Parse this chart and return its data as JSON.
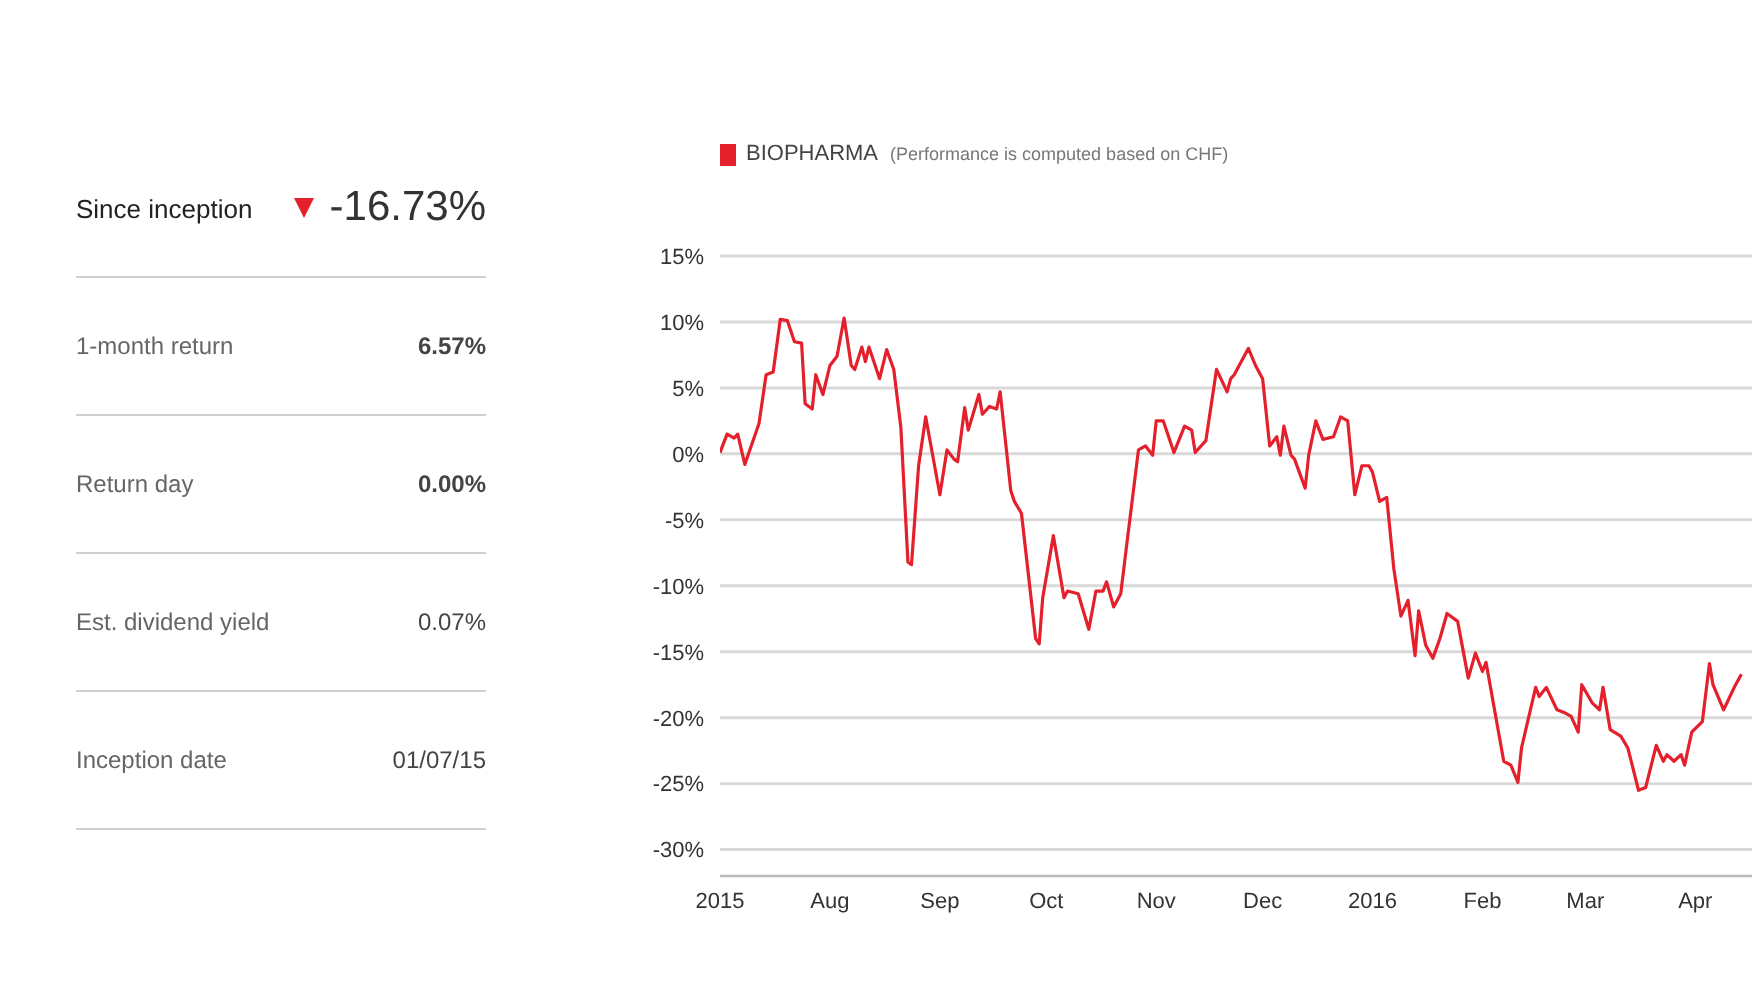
{
  "chart_data": [
    {
      "type": "other",
      "annotations": [
        "Since inception",
        "-16.73%",
        "1-month return",
        "6.57%",
        "Return day",
        "0.00%",
        "Est. dividend yield",
        "0.07%",
        "Inception date",
        "01/07/15"
      ]
    },
    {
      "type": "line",
      "subtitle": "(Performance is computed based on CHF)",
      "x": [
        "2015-07-01",
        "2015-07-03",
        "2015-07-05",
        "2015-07-06",
        "2015-07-08",
        "2015-07-12",
        "2015-07-14",
        "2015-07-16",
        "2015-07-18",
        "2015-07-20",
        "2015-07-22",
        "2015-07-24",
        "2015-07-25",
        "2015-07-27",
        "2015-07-28",
        "2015-07-30",
        "2015-08-01",
        "2015-08-03",
        "2015-08-05",
        "2015-08-07",
        "2015-08-08",
        "2015-08-10",
        "2015-08-11",
        "2015-08-12",
        "2015-08-15",
        "2015-08-17",
        "2015-08-19",
        "2015-08-21",
        "2015-08-23",
        "2015-08-24",
        "2015-08-26",
        "2015-08-28",
        "2015-09-01",
        "2015-09-03",
        "2015-09-05",
        "2015-09-06",
        "2015-09-08",
        "2015-09-09",
        "2015-09-12",
        "2015-09-13",
        "2015-09-15",
        "2015-09-17",
        "2015-09-18",
        "2015-09-21",
        "2015-09-22",
        "2015-09-24",
        "2015-09-28",
        "2015-09-29",
        "2015-09-30",
        "2015-10-03",
        "2015-10-06",
        "2015-10-07",
        "2015-10-10",
        "2015-10-13",
        "2015-10-15",
        "2015-10-17",
        "2015-10-18",
        "2015-10-20",
        "2015-10-22",
        "2015-10-24",
        "2015-10-27",
        "2015-10-29",
        "2015-10-31",
        "2015-11-01",
        "2015-11-03",
        "2015-11-06",
        "2015-11-09",
        "2015-11-11",
        "2015-11-12",
        "2015-11-15",
        "2015-11-18",
        "2015-11-21",
        "2015-11-22",
        "2015-11-23",
        "2015-11-27",
        "2015-11-29",
        "2015-12-01",
        "2015-12-03",
        "2015-12-05",
        "2015-12-06",
        "2015-12-07",
        "2015-12-09",
        "2015-12-10",
        "2015-12-13",
        "2015-12-14",
        "2015-12-16",
        "2015-12-18",
        "2015-12-21",
        "2015-12-23",
        "2015-12-25",
        "2015-12-27",
        "2015-12-29",
        "2015-12-31",
        "2016-01-01",
        "2016-01-03",
        "2016-01-05",
        "2016-01-07",
        "2016-01-09",
        "2016-01-11",
        "2016-01-13",
        "2016-01-14",
        "2016-01-16",
        "2016-01-18",
        "2016-01-20",
        "2016-01-22",
        "2016-01-25",
        "2016-01-28",
        "2016-01-30",
        "2016-02-01",
        "2016-02-02",
        "2016-02-07",
        "2016-02-09",
        "2016-02-11",
        "2016-02-12",
        "2016-02-16",
        "2016-02-17",
        "2016-02-19",
        "2016-02-22",
        "2016-02-24",
        "2016-02-26",
        "2016-02-28",
        "2016-02-29",
        "2016-03-03",
        "2016-03-05",
        "2016-03-06",
        "2016-03-08",
        "2016-03-11",
        "2016-03-13",
        "2016-03-16",
        "2016-03-18",
        "2016-03-21",
        "2016-03-23",
        "2016-03-24",
        "2016-03-26",
        "2016-03-28",
        "2016-03-29",
        "2016-03-31",
        "2016-04-03",
        "2016-04-05",
        "2016-04-06",
        "2016-04-09",
        "2016-04-12",
        "2016-04-14"
      ],
      "series": [
        {
          "name": "BIOPHARMA",
          "color": "#e3202b",
          "values": [
            0.1,
            1.5,
            1.2,
            1.5,
            -0.8,
            2.3,
            6,
            6.2,
            10.2,
            10.1,
            8.5,
            8.4,
            3.8,
            3.4,
            6,
            4.5,
            6.7,
            7.4,
            10.3,
            6.7,
            6.4,
            8.1,
            7,
            8.1,
            5.7,
            7.9,
            6.4,
            2,
            -8.2,
            -8.4,
            -0.9,
            2.8,
            -3.1,
            0.3,
            -0.4,
            -0.6,
            3.5,
            1.8,
            4.5,
            3.0,
            3.6,
            3.4,
            4.7,
            -2.8,
            -3.6,
            -4.5,
            -14,
            -14.4,
            -10.9,
            -6.2,
            -10.9,
            -10.4,
            -10.6,
            -13.3,
            -10.4,
            -10.4,
            -9.7,
            -11.6,
            -10.6,
            -6.2,
            0.3,
            0.6,
            -0.1,
            2.5,
            2.5,
            0.1,
            2.1,
            1.8,
            0.1,
            1,
            6.4,
            4.7,
            5.7,
            6,
            8,
            6.7,
            5.7,
            0.6,
            1.3,
            -0.1,
            2.1,
            -0.1,
            -0.4,
            -2.6,
            -0.1,
            2.5,
            1.1,
            1.3,
            2.8,
            2.5,
            -3.1,
            -0.9,
            -0.9,
            -1.4,
            -3.6,
            -3.3,
            -8.7,
            -12.3,
            -11.1,
            -15.3,
            -11.9,
            -14.5,
            -15.5,
            -14,
            -12.1,
            -12.7,
            -17,
            -15.1,
            -16.5,
            -15.8,
            -23.3,
            -23.6,
            -24.9,
            -22.3,
            -17.7,
            -18.4,
            -17.7,
            -19.4,
            -19.6,
            -19.9,
            -21.1,
            -17.5,
            -18.9,
            -19.4,
            -17.7,
            -20.9,
            -21.4,
            -22.3,
            -25.5,
            -25.3,
            -22.1,
            -23.3,
            -22.8,
            -23.3,
            -22.8,
            -23.6,
            -21.1,
            -20.3,
            -15.9,
            -17.5,
            -19.4,
            -17.7,
            -16.7
          ]
        }
      ],
      "xlim": [
        "2015-07-01",
        "2016-04-17"
      ],
      "xticks": [
        {
          "value": "2015-07-01",
          "label": "2015"
        },
        {
          "value": "2015-08-01",
          "label": "Aug"
        },
        {
          "value": "2015-09-01",
          "label": "Sep"
        },
        {
          "value": "2015-10-01",
          "label": "Oct"
        },
        {
          "value": "2015-11-01",
          "label": "Nov"
        },
        {
          "value": "2015-12-01",
          "label": "Dec"
        },
        {
          "value": "2016-01-01",
          "label": "2016"
        },
        {
          "value": "2016-02-01",
          "label": "Feb"
        },
        {
          "value": "2016-03-01",
          "label": "Mar"
        },
        {
          "value": "2016-04-01",
          "label": "Apr"
        }
      ],
      "ylim": [
        -32,
        15
      ],
      "yticks": [
        {
          "value": 15,
          "label": "15%"
        },
        {
          "value": 10,
          "label": "10%"
        },
        {
          "value": 5,
          "label": "5%"
        },
        {
          "value": 0,
          "label": "0%"
        },
        {
          "value": -5,
          "label": "-5%"
        },
        {
          "value": -10,
          "label": "-10%"
        },
        {
          "value": -15,
          "label": "-15%"
        },
        {
          "value": -20,
          "label": "-20%"
        },
        {
          "value": -25,
          "label": "-25%"
        },
        {
          "value": -30,
          "label": "-30%"
        }
      ],
      "grid": "y",
      "legend": "top left"
    }
  ]
}
